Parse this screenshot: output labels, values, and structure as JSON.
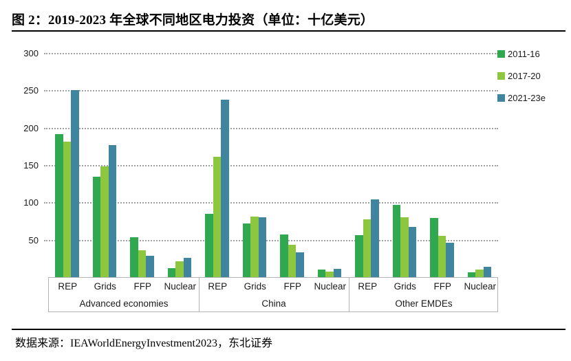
{
  "figure": {
    "title": "图 2：2019-2023 年全球不同地区电力投资（单位：十亿美元）",
    "source": "数据来源：IEAWorldEnergyInvestment2023，东北证券"
  },
  "chart_data": {
    "type": "bar",
    "title": "图 2：2019-2023 年全球不同地区电力投资（单位：十亿美元）",
    "unit_label": "十亿美元",
    "groups": [
      "Advanced economies",
      "China",
      "Other EMDEs"
    ],
    "categories": [
      "REP",
      "Grids",
      "FFP",
      "Nuclear"
    ],
    "series": [
      {
        "name": "2011-16",
        "color": "#2FA84F",
        "values": [
          191,
          134,
          53,
          12,
          85,
          72,
          57,
          10,
          56,
          97,
          79,
          6
        ]
      },
      {
        "name": "2017-20",
        "color": "#8DC63F",
        "values": [
          181,
          148,
          36,
          21,
          161,
          81,
          43,
          7,
          77,
          80,
          55,
          10
        ]
      },
      {
        "name": "2021-23e",
        "color": "#3F85A0",
        "values": [
          250,
          177,
          29,
          26,
          237,
          80,
          33,
          11,
          104,
          67,
          46,
          14
        ]
      }
    ],
    "ylim": [
      0,
      300
    ],
    "yticks": [
      50,
      100,
      150,
      200,
      250,
      300
    ],
    "grid": "horizontal dotted",
    "legend_position": "top-right",
    "xlabel": "",
    "ylabel": ""
  }
}
